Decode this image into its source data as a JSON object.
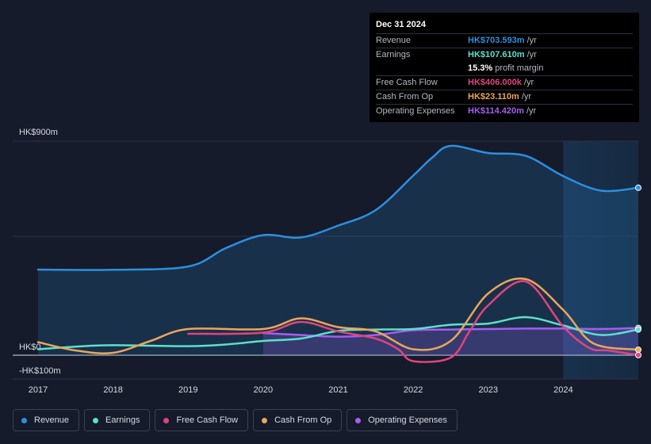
{
  "tooltip": {
    "date": "Dec 31 2024",
    "rows": [
      {
        "label": "Revenue",
        "value": "HK$703.593m",
        "unit": "/yr",
        "color": "#2d8fe0"
      },
      {
        "label": "Earnings",
        "value": "HK$107.610m",
        "unit": "/yr",
        "color": "#5de0cc"
      },
      {
        "label": "",
        "value": "15.3%",
        "unit": "profit margin",
        "color": "#ffffff"
      },
      {
        "label": "Free Cash Flow",
        "value": "HK$406.000k",
        "unit": "/yr",
        "color": "#e0447f"
      },
      {
        "label": "Cash From Op",
        "value": "HK$23.110m",
        "unit": "/yr",
        "color": "#eba75a"
      },
      {
        "label": "Operating Expenses",
        "value": "HK$114.420m",
        "unit": "/yr",
        "color": "#a45ef0"
      }
    ]
  },
  "legend": [
    {
      "label": "Revenue",
      "color": "#2d8fe0"
    },
    {
      "label": "Earnings",
      "color": "#5de0cc"
    },
    {
      "label": "Free Cash Flow",
      "color": "#e0447f"
    },
    {
      "label": "Cash From Op",
      "color": "#eba75a"
    },
    {
      "label": "Operating Expenses",
      "color": "#a45ef0"
    }
  ],
  "chart_data": {
    "type": "line",
    "title": "",
    "xlabel": "",
    "ylabel": "",
    "y_labels": [
      {
        "text": "HK$900m",
        "value": 900
      },
      {
        "text": "HK$0",
        "value": 0
      },
      {
        "text": "-HK$100m",
        "value": -100
      }
    ],
    "ylim": [
      -100,
      900
    ],
    "xlim": [
      2017,
      2025
    ],
    "x_ticks": [
      "2017",
      "2018",
      "2019",
      "2020",
      "2021",
      "2022",
      "2023",
      "2024"
    ],
    "forecast_region_start": 2024.0,
    "series": [
      {
        "name": "Revenue",
        "color": "#2d8fe0",
        "fill": true,
        "points": [
          [
            2017.0,
            360
          ],
          [
            2018.0,
            359
          ],
          [
            2019.0,
            373
          ],
          [
            2019.5,
            450
          ],
          [
            2020.0,
            505
          ],
          [
            2020.5,
            495
          ],
          [
            2021.0,
            545
          ],
          [
            2021.5,
            610
          ],
          [
            2022.0,
            755
          ],
          [
            2022.25,
            830
          ],
          [
            2022.5,
            880
          ],
          [
            2023.0,
            850
          ],
          [
            2023.5,
            838
          ],
          [
            2024.0,
            753
          ],
          [
            2024.5,
            692
          ],
          [
            2025.0,
            704
          ]
        ]
      },
      {
        "name": "Earnings",
        "color": "#5de0cc",
        "fill": false,
        "points": [
          [
            2017.0,
            25
          ],
          [
            2017.5,
            36
          ],
          [
            2018.0,
            42
          ],
          [
            2019.0,
            38
          ],
          [
            2019.5,
            45
          ],
          [
            2020.0,
            60
          ],
          [
            2020.5,
            70
          ],
          [
            2021.0,
            102
          ],
          [
            2021.5,
            108
          ],
          [
            2022.0,
            110
          ],
          [
            2022.5,
            128
          ],
          [
            2023.0,
            133
          ],
          [
            2023.5,
            160
          ],
          [
            2024.0,
            125
          ],
          [
            2024.5,
            85
          ],
          [
            2025.0,
            108
          ]
        ]
      },
      {
        "name": "Free Cash Flow",
        "color": "#e0447f",
        "fill": false,
        "points": [
          [
            2019.0,
            90
          ],
          [
            2020.0,
            95
          ],
          [
            2020.5,
            140
          ],
          [
            2021.0,
            100
          ],
          [
            2021.5,
            70
          ],
          [
            2021.8,
            25
          ],
          [
            2022.0,
            -25
          ],
          [
            2022.5,
            -10
          ],
          [
            2022.75,
            100
          ],
          [
            2023.0,
            210
          ],
          [
            2023.5,
            310
          ],
          [
            2024.0,
            120
          ],
          [
            2024.35,
            30
          ],
          [
            2024.6,
            20
          ],
          [
            2025.0,
            0.4
          ]
        ]
      },
      {
        "name": "Cash From Op",
        "color": "#eba75a",
        "fill": false,
        "points": [
          [
            2017.0,
            55
          ],
          [
            2017.5,
            20
          ],
          [
            2018.0,
            10
          ],
          [
            2018.5,
            60
          ],
          [
            2019.0,
            110
          ],
          [
            2020.0,
            110
          ],
          [
            2020.5,
            155
          ],
          [
            2021.0,
            118
          ],
          [
            2021.5,
            100
          ],
          [
            2022.0,
            25
          ],
          [
            2022.5,
            60
          ],
          [
            2023.0,
            260
          ],
          [
            2023.5,
            320
          ],
          [
            2024.0,
            190
          ],
          [
            2024.4,
            50
          ],
          [
            2025.0,
            23.1
          ]
        ]
      },
      {
        "name": "Operating Expenses",
        "color": "#a45ef0",
        "fill": true,
        "points": [
          [
            2020.0,
            93
          ],
          [
            2020.5,
            85
          ],
          [
            2021.0,
            78
          ],
          [
            2021.5,
            85
          ],
          [
            2022.0,
            105
          ],
          [
            2022.5,
            108
          ],
          [
            2023.0,
            110
          ],
          [
            2023.5,
            112
          ],
          [
            2024.0,
            112
          ],
          [
            2024.5,
            110
          ],
          [
            2025.0,
            114.4
          ]
        ]
      }
    ]
  }
}
